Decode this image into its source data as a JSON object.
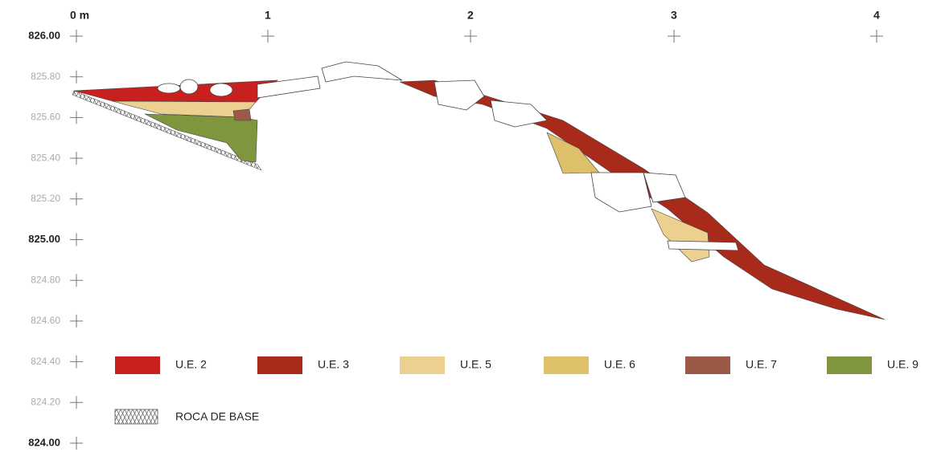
{
  "x_scale": [
    "0 m",
    "1",
    "2",
    "3",
    "4"
  ],
  "y_scale": [
    "826.00",
    "825.80",
    "825.60",
    "825.40",
    "825.20",
    "825.00",
    "824.80",
    "824.60",
    "824.40",
    "824.20",
    "824.00"
  ],
  "legend": [
    {
      "label": "U.E. 2",
      "color": "#c8201e"
    },
    {
      "label": "U.E. 3",
      "color": "#a82a1a"
    },
    {
      "label": "U.E. 5",
      "color": "#ecd08f"
    },
    {
      "label": "U.E. 6",
      "color": "#dfc06a"
    },
    {
      "label": "U.E. 7",
      "color": "#9b5a46"
    },
    {
      "label": "U.E. 9",
      "color": "#7f963e"
    }
  ],
  "base_rock": "ROCA DE BASE"
}
